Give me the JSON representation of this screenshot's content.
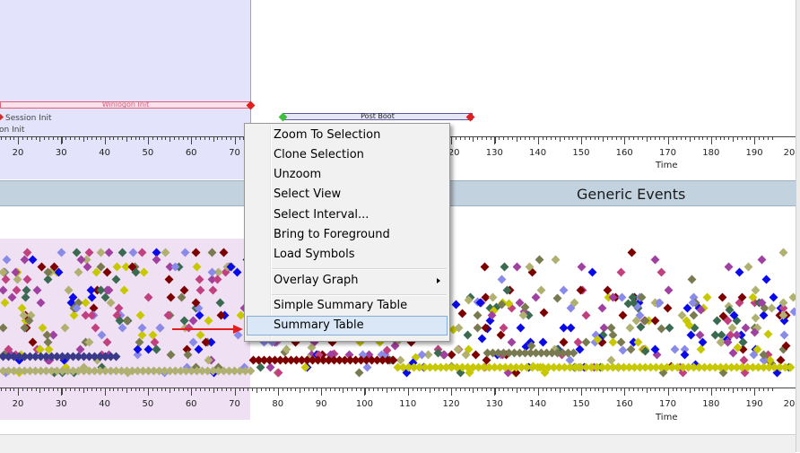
{
  "intervals": {
    "winlogon": "Winlogon Init",
    "session": "Session Init",
    "on_init": "on Init",
    "post_boot": "Post Boot"
  },
  "axis": {
    "ticks": [
      "20",
      "30",
      "40",
      "50",
      "60",
      "70",
      "80",
      "90",
      "100",
      "110",
      "120",
      "130",
      "140",
      "150",
      "160",
      "170",
      "180",
      "190",
      "20"
    ],
    "unit": "Time"
  },
  "graph": {
    "title": "Generic Events"
  },
  "context_menu": {
    "zoom_to_selection": "Zoom To Selection",
    "clone_selection": "Clone Selection",
    "unzoom": "Unzoom",
    "select_view": "Select View",
    "select_interval": "Select Interval...",
    "bring_to_foreground": "Bring to Foreground",
    "load_symbols": "Load Symbols",
    "overlay_graph": "Overlay Graph",
    "simple_summary_table": "Simple Summary Table",
    "summary_table": "Summary Table"
  },
  "colors": {
    "selection": "#e3e3fb",
    "header": "#c3d2df",
    "menu_hover": "#d9e7f6",
    "arrow": "#e02020"
  }
}
